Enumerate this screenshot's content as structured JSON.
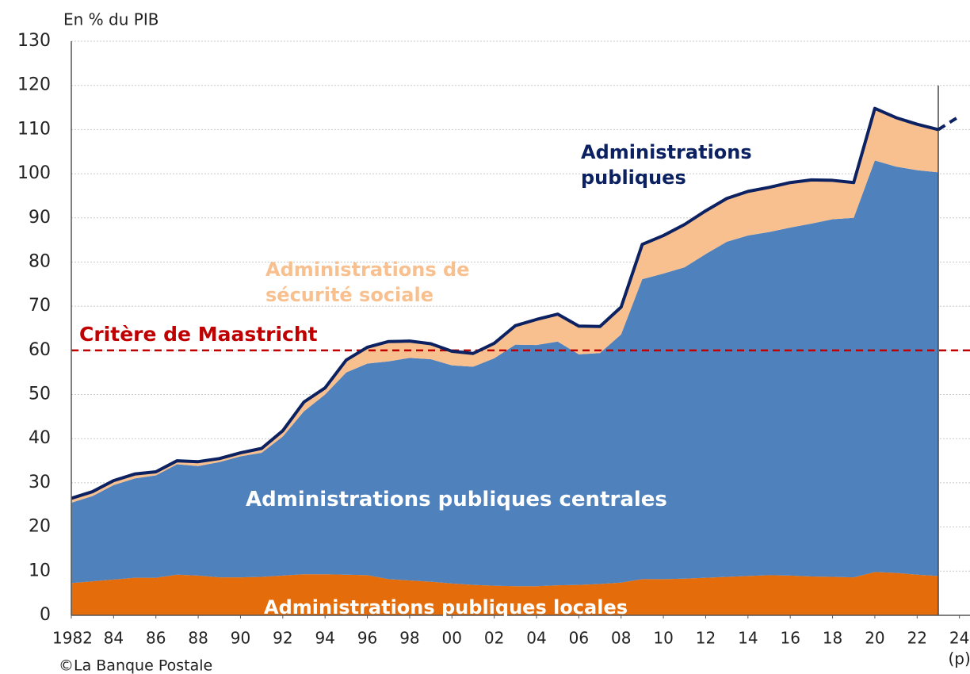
{
  "chart_data": {
    "type": "stacked_area",
    "y_axis_label": "En % du PIB",
    "source": "©La Banque Postale",
    "x": [
      1982,
      1983,
      1984,
      1985,
      1986,
      1987,
      1988,
      1989,
      1990,
      1991,
      1992,
      1993,
      1994,
      1995,
      1996,
      1997,
      1998,
      1999,
      2000,
      2001,
      2002,
      2003,
      2004,
      2005,
      2006,
      2007,
      2008,
      2009,
      2010,
      2011,
      2012,
      2013,
      2014,
      2015,
      2016,
      2017,
      2018,
      2019,
      2020,
      2021,
      2022,
      2023,
      2024
    ],
    "xlim": [
      1982,
      2024.5
    ],
    "xticks": [
      {
        "value": 1982,
        "label": "1982"
      },
      {
        "value": 1984,
        "label": "84"
      },
      {
        "value": 1986,
        "label": "86"
      },
      {
        "value": 1988,
        "label": "88"
      },
      {
        "value": 1990,
        "label": "90"
      },
      {
        "value": 1992,
        "label": "92"
      },
      {
        "value": 1994,
        "label": "94"
      },
      {
        "value": 1996,
        "label": "96"
      },
      {
        "value": 1998,
        "label": "98"
      },
      {
        "value": 2000,
        "label": "00"
      },
      {
        "value": 2002,
        "label": "02"
      },
      {
        "value": 2004,
        "label": "04"
      },
      {
        "value": 2006,
        "label": "06"
      },
      {
        "value": 2008,
        "label": "08"
      },
      {
        "value": 2010,
        "label": "10"
      },
      {
        "value": 2012,
        "label": "12"
      },
      {
        "value": 2014,
        "label": "14"
      },
      {
        "value": 2016,
        "label": "16"
      },
      {
        "value": 2018,
        "label": "18"
      },
      {
        "value": 2020,
        "label": "20"
      },
      {
        "value": 2022,
        "label": "22"
      },
      {
        "value": 2024,
        "label": "24"
      }
    ],
    "xtick_note": "(p)",
    "ylim": [
      0,
      130
    ],
    "yticks": [
      0,
      10,
      20,
      30,
      40,
      50,
      60,
      70,
      80,
      90,
      100,
      110,
      120,
      130
    ],
    "grid": true,
    "series": [
      {
        "name": "Administrations publiques locales",
        "color": "#e46c0a",
        "values": [
          7.3,
          7.7,
          8.1,
          8.5,
          8.5,
          9.2,
          9.0,
          8.6,
          8.6,
          8.7,
          9.0,
          9.3,
          9.3,
          9.2,
          9.1,
          8.2,
          7.9,
          7.6,
          7.2,
          6.9,
          6.7,
          6.6,
          6.6,
          6.8,
          6.9,
          7.1,
          7.4,
          8.2,
          8.2,
          8.3,
          8.5,
          8.7,
          8.9,
          9.1,
          9.0,
          8.8,
          8.7,
          8.6,
          9.8,
          9.6,
          9.2,
          8.9,
          null
        ]
      },
      {
        "name": "Administrations publiques centrales",
        "color": "#4f81bd",
        "values": [
          18.2,
          19.3,
          21.4,
          22.5,
          23.2,
          25.0,
          24.8,
          26.1,
          27.4,
          28.1,
          31.5,
          36.9,
          40.7,
          45.8,
          47.9,
          49.3,
          50.4,
          50.4,
          49.4,
          49.4,
          51.5,
          54.7,
          54.6,
          55.2,
          52.2,
          52.3,
          56.2,
          67.9,
          69.2,
          70.5,
          73.3,
          75.9,
          77.1,
          77.7,
          78.8,
          79.9,
          81.0,
          81.4,
          93.2,
          92.0,
          91.6,
          91.4,
          null
        ]
      },
      {
        "name": "Administrations de sécurité sociale",
        "color": "#f9c08f",
        "values": [
          1.0,
          1.0,
          1.0,
          1.0,
          0.8,
          0.8,
          1.0,
          0.8,
          0.8,
          1.0,
          1.3,
          2.1,
          1.5,
          2.8,
          3.7,
          4.5,
          3.8,
          3.5,
          3.2,
          3.0,
          3.4,
          4.3,
          5.8,
          6.2,
          6.4,
          6.0,
          6.2,
          7.9,
          8.6,
          9.7,
          9.8,
          9.8,
          10.0,
          10.1,
          10.2,
          9.9,
          8.8,
          8.0,
          11.8,
          11.1,
          10.4,
          9.7,
          null
        ]
      }
    ],
    "total_line": {
      "name": "Administrations publiques",
      "color": "#0b2161",
      "values": [
        26.5,
        28,
        30.5,
        32,
        32.5,
        35,
        34.8,
        35.5,
        36.8,
        37.8,
        41.8,
        48.3,
        51.5,
        57.8,
        60.7,
        62,
        62.1,
        61.5,
        59.8,
        59.3,
        61.6,
        65.6,
        67,
        68.2,
        65.5,
        65.4,
        69.8,
        84,
        86,
        88.5,
        91.6,
        94.4,
        96,
        96.9,
        98,
        98.6,
        98.5,
        98,
        114.8,
        112.7,
        111.2,
        110,
        113
      ]
    },
    "reference_line": {
      "value": 60,
      "label": "Critère de Maastricht",
      "color": "#c00000"
    }
  }
}
